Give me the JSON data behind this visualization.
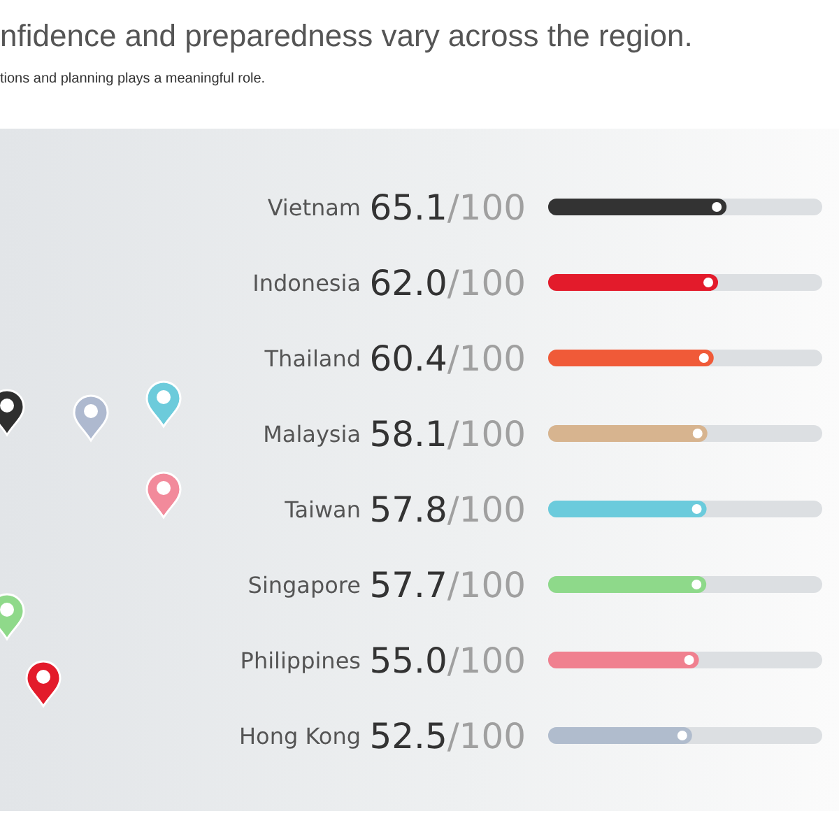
{
  "chart_data": {
    "type": "bar",
    "title": "nfidence and preparedness vary across the region.",
    "subtitle": "tions and planning plays a meaningful role.",
    "orientation": "horizontal",
    "categories": [
      "Vietnam",
      "Indonesia",
      "Thailand",
      "Malaysia",
      "Taiwan",
      "Singapore",
      "Philippines",
      "Hong Kong"
    ],
    "values": [
      65.1,
      62.0,
      60.4,
      58.1,
      57.8,
      57.7,
      55.0,
      52.5
    ],
    "colors": [
      "#333333",
      "#e31b2b",
      "#f05a38",
      "#d7b48f",
      "#6bcbdc",
      "#8ed98a",
      "#f0808f",
      "#b0bccd"
    ],
    "value_labels": [
      "65.1/100",
      "62.0/100",
      "60.4/100",
      "58.1/100",
      "57.8/100",
      "57.7/100",
      "55.0/100",
      "52.5/100"
    ],
    "xlim": [
      0,
      100
    ],
    "tick_labels": "y"
  }
}
